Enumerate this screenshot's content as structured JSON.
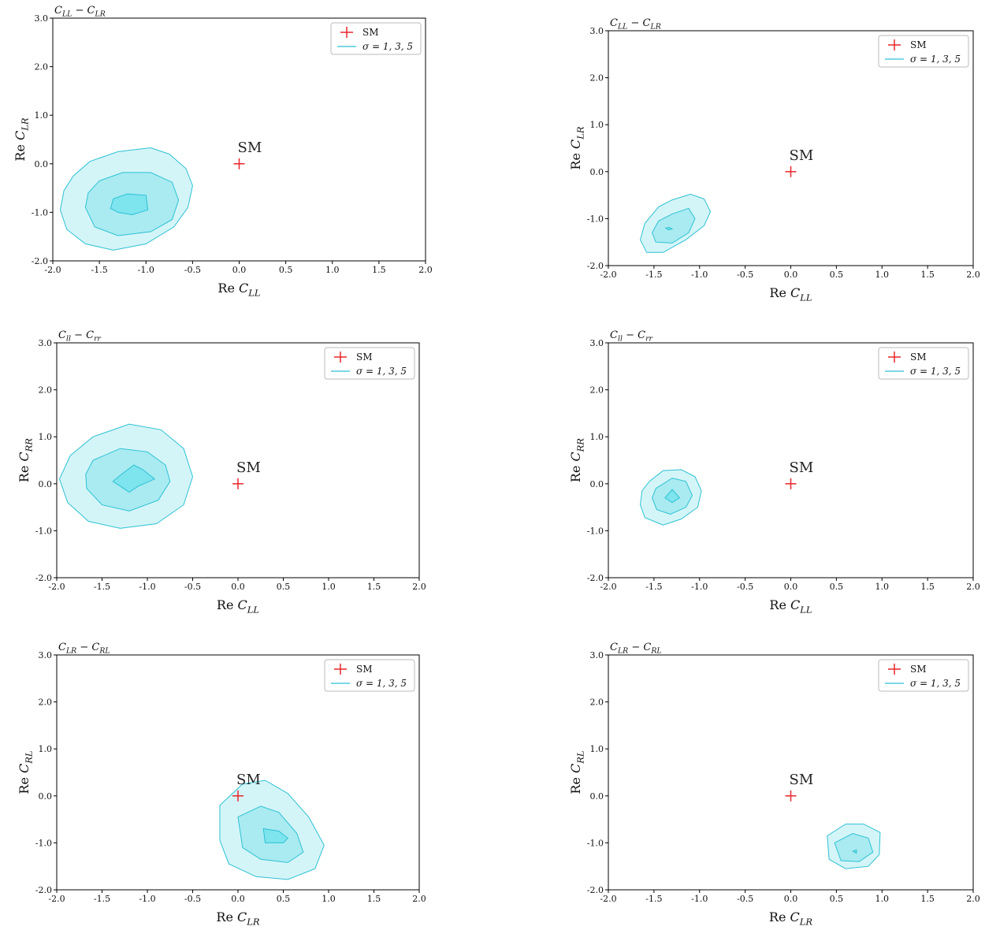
{
  "chart_data": [
    {
      "type": "contour",
      "title": "C_LL − C_LR",
      "xlabel": "Re C_LL",
      "ylabel": "Re C_LR",
      "xlim": [
        -2.0,
        2.0
      ],
      "ylim": [
        -2.0,
        3.0
      ],
      "xticks": [
        "-2.0",
        "-1.5",
        "-1.0",
        "-0.5",
        "0.0",
        "0.5",
        "1.0",
        "1.5",
        "2.0"
      ],
      "yticks": [
        "-2.0",
        "-1.0",
        "0.0",
        "1.0",
        "2.0",
        "3.0"
      ],
      "grid": false,
      "legend": {
        "placement": "top-right",
        "entries": [
          "SM",
          "σ = 1, 3, 5"
        ]
      },
      "sm_point": {
        "label": "SM",
        "x": 0.0,
        "y": 0.0
      },
      "contours": [
        {
          "sigma": 5,
          "points": [
            [
              -1.6,
              0.05
            ],
            [
              -1.3,
              0.25
            ],
            [
              -0.95,
              0.33
            ],
            [
              -0.75,
              0.2
            ],
            [
              -0.57,
              -0.1
            ],
            [
              -0.5,
              -0.45
            ],
            [
              -0.55,
              -0.9
            ],
            [
              -0.7,
              -1.3
            ],
            [
              -1.0,
              -1.65
            ],
            [
              -1.35,
              -1.78
            ],
            [
              -1.65,
              -1.65
            ],
            [
              -1.85,
              -1.35
            ],
            [
              -1.92,
              -0.95
            ],
            [
              -1.88,
              -0.55
            ],
            [
              -1.78,
              -0.25
            ]
          ]
        },
        {
          "sigma": 3,
          "points": [
            [
              -1.5,
              -0.35
            ],
            [
              -1.25,
              -0.18
            ],
            [
              -0.95,
              -0.18
            ],
            [
              -0.72,
              -0.38
            ],
            [
              -0.65,
              -0.75
            ],
            [
              -0.72,
              -1.15
            ],
            [
              -0.95,
              -1.4
            ],
            [
              -1.3,
              -1.48
            ],
            [
              -1.55,
              -1.3
            ],
            [
              -1.65,
              -0.9
            ],
            [
              -1.62,
              -0.6
            ]
          ]
        },
        {
          "sigma": 1,
          "points": [
            [
              -1.35,
              -0.72
            ],
            [
              -1.2,
              -0.62
            ],
            [
              -1.0,
              -0.65
            ],
            [
              -0.98,
              -0.95
            ],
            [
              -1.15,
              -1.05
            ],
            [
              -1.3,
              -1.0
            ],
            [
              -1.38,
              -0.92
            ]
          ]
        }
      ]
    },
    {
      "type": "contour",
      "title": "C_LL − C_LR",
      "xlabel": "Re C_LL",
      "ylabel": "Re C_LR",
      "xlim": [
        -2.0,
        2.0
      ],
      "ylim": [
        -2.0,
        3.0
      ],
      "xticks": [
        "-2.0",
        "-1.5",
        "-1.0",
        "-0.5",
        "0.0",
        "0.5",
        "1.0",
        "1.5",
        "2.0"
      ],
      "yticks": [
        "-2.0",
        "-1.0",
        "0.0",
        "1.0",
        "2.0",
        "3.0"
      ],
      "grid": false,
      "legend": {
        "placement": "top-right",
        "entries": [
          "SM",
          "σ = 1, 3, 5"
        ]
      },
      "sm_point": {
        "label": "SM",
        "x": 0.0,
        "y": 0.0
      },
      "contours": [
        {
          "sigma": 5,
          "points": [
            [
              -1.45,
              -0.75
            ],
            [
              -1.3,
              -0.6
            ],
            [
              -1.1,
              -0.48
            ],
            [
              -0.95,
              -0.58
            ],
            [
              -0.88,
              -0.85
            ],
            [
              -0.95,
              -1.15
            ],
            [
              -1.15,
              -1.45
            ],
            [
              -1.4,
              -1.72
            ],
            [
              -1.58,
              -1.72
            ],
            [
              -1.65,
              -1.45
            ],
            [
              -1.6,
              -1.1
            ]
          ]
        },
        {
          "sigma": 3,
          "points": [
            [
              -1.45,
              -1.05
            ],
            [
              -1.3,
              -0.9
            ],
            [
              -1.12,
              -0.78
            ],
            [
              -1.05,
              -1.0
            ],
            [
              -1.12,
              -1.3
            ],
            [
              -1.3,
              -1.52
            ],
            [
              -1.48,
              -1.5
            ],
            [
              -1.52,
              -1.3
            ]
          ]
        },
        {
          "sigma": 1,
          "points": [
            [
              -1.37,
              -1.2
            ],
            [
              -1.33,
              -1.19
            ],
            [
              -1.3,
              -1.22
            ],
            [
              -1.34,
              -1.24
            ]
          ]
        }
      ]
    },
    {
      "type": "contour",
      "title": "C_ll − C_rr",
      "xlabel": "Re C_LL",
      "ylabel": "Re C_RR",
      "xlim": [
        -2.0,
        2.0
      ],
      "ylim": [
        -2.0,
        3.0
      ],
      "xticks": [
        "-2.0",
        "-1.5",
        "-1.0",
        "-0.5",
        "0.0",
        "0.5",
        "1.0",
        "1.5",
        "2.0"
      ],
      "yticks": [
        "-2.0",
        "-1.0",
        "0.0",
        "1.0",
        "2.0",
        "3.0"
      ],
      "grid": false,
      "legend": {
        "placement": "top-right",
        "entries": [
          "SM",
          "σ = 1, 3, 5"
        ]
      },
      "sm_point": {
        "label": "SM",
        "x": 0.0,
        "y": 0.0
      },
      "contours": [
        {
          "sigma": 5,
          "points": [
            [
              -1.85,
              0.6
            ],
            [
              -1.6,
              1.0
            ],
            [
              -1.2,
              1.27
            ],
            [
              -0.85,
              1.15
            ],
            [
              -0.6,
              0.75
            ],
            [
              -0.5,
              0.15
            ],
            [
              -0.6,
              -0.45
            ],
            [
              -0.9,
              -0.85
            ],
            [
              -1.3,
              -0.95
            ],
            [
              -1.65,
              -0.8
            ],
            [
              -1.88,
              -0.4
            ],
            [
              -1.97,
              0.1
            ]
          ]
        },
        {
          "sigma": 3,
          "points": [
            [
              -1.6,
              0.5
            ],
            [
              -1.3,
              0.75
            ],
            [
              -1.0,
              0.68
            ],
            [
              -0.8,
              0.4
            ],
            [
              -0.75,
              0.05
            ],
            [
              -0.88,
              -0.35
            ],
            [
              -1.2,
              -0.58
            ],
            [
              -1.5,
              -0.45
            ],
            [
              -1.67,
              -0.1
            ],
            [
              -1.68,
              0.2
            ]
          ]
        },
        {
          "sigma": 1,
          "points": [
            [
              -1.3,
              0.18
            ],
            [
              -1.15,
              0.4
            ],
            [
              -1.05,
              0.3
            ],
            [
              -0.92,
              0.1
            ],
            [
              -1.1,
              -0.05
            ],
            [
              -1.2,
              -0.18
            ],
            [
              -1.3,
              -0.05
            ],
            [
              -1.38,
              0.05
            ]
          ]
        }
      ]
    },
    {
      "type": "contour",
      "title": "C_ll − C_rr",
      "xlabel": "Re C_LL",
      "ylabel": "Re C_RR",
      "xlim": [
        -2.0,
        2.0
      ],
      "ylim": [
        -2.0,
        3.0
      ],
      "xticks": [
        "-2.0",
        "-1.5",
        "-1.0",
        "-0.5",
        "0.0",
        "0.5",
        "1.0",
        "1.5",
        "2.0"
      ],
      "yticks": [
        "-2.0",
        "-1.0",
        "0.0",
        "1.0",
        "2.0",
        "3.0"
      ],
      "grid": false,
      "legend": {
        "placement": "top-right",
        "entries": [
          "SM",
          "σ = 1, 3, 5"
        ]
      },
      "sm_point": {
        "label": "SM",
        "x": 0.0,
        "y": 0.0
      },
      "contours": [
        {
          "sigma": 5,
          "points": [
            [
              -1.55,
              0.05
            ],
            [
              -1.4,
              0.28
            ],
            [
              -1.2,
              0.3
            ],
            [
              -1.05,
              0.15
            ],
            [
              -0.98,
              -0.15
            ],
            [
              -1.02,
              -0.5
            ],
            [
              -1.2,
              -0.75
            ],
            [
              -1.4,
              -0.88
            ],
            [
              -1.6,
              -0.72
            ],
            [
              -1.65,
              -0.45
            ],
            [
              -1.63,
              -0.15
            ]
          ]
        },
        {
          "sigma": 3,
          "points": [
            [
              -1.48,
              -0.1
            ],
            [
              -1.3,
              0.12
            ],
            [
              -1.15,
              0.05
            ],
            [
              -1.08,
              -0.25
            ],
            [
              -1.15,
              -0.5
            ],
            [
              -1.32,
              -0.65
            ],
            [
              -1.47,
              -0.55
            ],
            [
              -1.52,
              -0.3
            ]
          ]
        },
        {
          "sigma": 1,
          "points": [
            [
              -1.38,
              -0.3
            ],
            [
              -1.3,
              -0.12
            ],
            [
              -1.22,
              -0.3
            ],
            [
              -1.3,
              -0.4
            ]
          ]
        }
      ]
    },
    {
      "type": "contour",
      "title": "C_LR − C_RL",
      "xlabel": "Re C_LR",
      "ylabel": "Re C_RL",
      "xlim": [
        -2.0,
        2.0
      ],
      "ylim": [
        -2.0,
        3.0
      ],
      "xticks": [
        "-2.0",
        "-1.5",
        "-1.0",
        "-0.5",
        "0.0",
        "0.5",
        "1.0",
        "1.5",
        "2.0"
      ],
      "yticks": [
        "-2.0",
        "-1.0",
        "0.0",
        "1.0",
        "2.0",
        "3.0"
      ],
      "grid": false,
      "legend": {
        "placement": "top-right",
        "entries": [
          "SM",
          "σ = 1, 3, 5"
        ]
      },
      "sm_point": {
        "label": "SM",
        "x": 0.0,
        "y": 0.0
      },
      "contours": [
        {
          "sigma": 5,
          "points": [
            [
              -0.2,
              -0.2
            ],
            [
              0.05,
              0.25
            ],
            [
              0.3,
              0.33
            ],
            [
              0.55,
              0.05
            ],
            [
              0.78,
              -0.45
            ],
            [
              0.95,
              -1.05
            ],
            [
              0.85,
              -1.55
            ],
            [
              0.55,
              -1.78
            ],
            [
              0.2,
              -1.72
            ],
            [
              -0.1,
              -1.45
            ],
            [
              -0.2,
              -0.95
            ]
          ]
        },
        {
          "sigma": 3,
          "points": [
            [
              0.0,
              -0.45
            ],
            [
              0.25,
              -0.22
            ],
            [
              0.45,
              -0.35
            ],
            [
              0.65,
              -0.8
            ],
            [
              0.72,
              -1.2
            ],
            [
              0.55,
              -1.42
            ],
            [
              0.25,
              -1.35
            ],
            [
              0.05,
              -1.1
            ]
          ]
        },
        {
          "sigma": 1,
          "points": [
            [
              0.28,
              -0.7
            ],
            [
              0.45,
              -0.75
            ],
            [
              0.55,
              -0.9
            ],
            [
              0.5,
              -1.0
            ],
            [
              0.3,
              -1.0
            ]
          ]
        }
      ]
    },
    {
      "type": "contour",
      "title": "C_LR − C_RL",
      "xlabel": "Re C_LR",
      "ylabel": "Re C_RL",
      "xlim": [
        -2.0,
        2.0
      ],
      "ylim": [
        -2.0,
        3.0
      ],
      "xticks": [
        "-2.0",
        "-1.5",
        "-1.0",
        "-0.5",
        "0.0",
        "0.5",
        "1.0",
        "1.5",
        "2.0"
      ],
      "yticks": [
        "-2.0",
        "-1.0",
        "0.0",
        "1.0",
        "2.0",
        "3.0"
      ],
      "grid": false,
      "legend": {
        "placement": "top-right",
        "entries": [
          "SM",
          "σ = 1, 3, 5"
        ]
      },
      "sm_point": {
        "label": "SM",
        "x": 0.0,
        "y": 0.0
      },
      "contours": [
        {
          "sigma": 5,
          "points": [
            [
              0.4,
              -0.85
            ],
            [
              0.6,
              -0.6
            ],
            [
              0.8,
              -0.6
            ],
            [
              0.98,
              -0.78
            ],
            [
              0.97,
              -1.25
            ],
            [
              0.85,
              -1.5
            ],
            [
              0.6,
              -1.55
            ],
            [
              0.42,
              -1.35
            ]
          ]
        },
        {
          "sigma": 3,
          "points": [
            [
              0.48,
              -1.0
            ],
            [
              0.68,
              -0.8
            ],
            [
              0.85,
              -0.9
            ],
            [
              0.9,
              -1.2
            ],
            [
              0.75,
              -1.4
            ],
            [
              0.55,
              -1.38
            ]
          ]
        },
        {
          "sigma": 1,
          "points": [
            [
              0.68,
              -1.18
            ],
            [
              0.72,
              -1.15
            ],
            [
              0.72,
              -1.22
            ]
          ]
        }
      ]
    }
  ],
  "colors": {
    "sigma5_fill": "#d4f5f8",
    "sigma3_fill": "#a9ebf1",
    "sigma1_fill": "#7ee4ee",
    "contour_line": "#2ec1d3",
    "sm_marker": "#e8262a",
    "axes": "#000000"
  }
}
